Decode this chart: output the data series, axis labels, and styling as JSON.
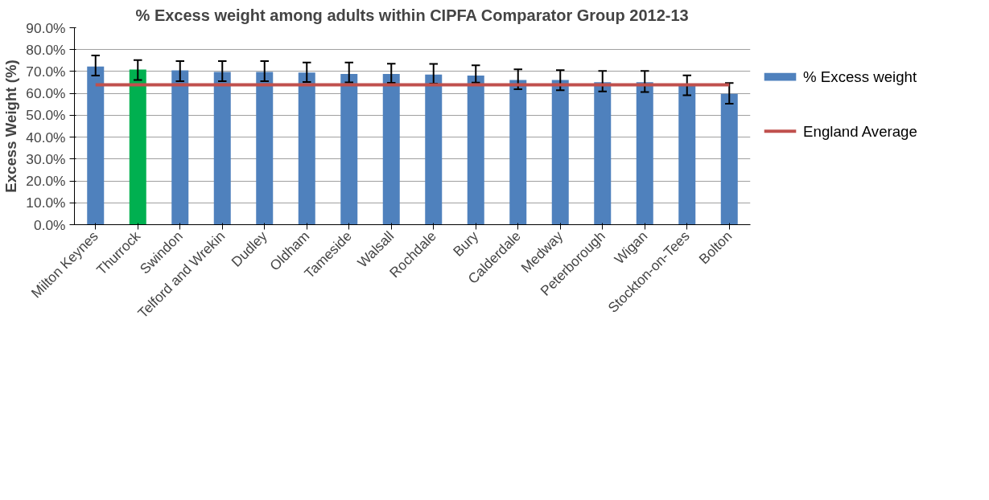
{
  "chart_data": {
    "type": "bar",
    "title": "% Excess weight among adults within CIPFA Comparator Group 2012-13",
    "ylabel": "Excess Weight (%)",
    "categories": [
      "Milton Keynes",
      "Thurrock",
      "Swindon",
      "Telford and Wrekin",
      "Dudley",
      "Oldham",
      "Tameside",
      "Walsall",
      "Rochdale",
      "Bury",
      "Calderdale",
      "Medway",
      "Peterborough",
      "Wigan",
      "Stockton-on-Tees",
      "Bolton"
    ],
    "series": [
      {
        "name": "% Excess weight",
        "color": "#4f81bd",
        "colors": [
          "#4f81bd",
          "#00b050",
          "#4f81bd",
          "#4f81bd",
          "#4f81bd",
          "#4f81bd",
          "#4f81bd",
          "#4f81bd",
          "#4f81bd",
          "#4f81bd",
          "#4f81bd",
          "#4f81bd",
          "#4f81bd",
          "#4f81bd",
          "#4f81bd",
          "#4f81bd"
        ],
        "values": [
          72.3,
          70.9,
          70.5,
          69.8,
          69.8,
          69.5,
          68.9,
          68.9,
          68.6,
          68.1,
          66.1,
          66.1,
          65.1,
          65.1,
          64.0,
          59.8
        ],
        "errors": [
          [
            68.1,
            77.3
          ],
          [
            66.1,
            75.2
          ],
          [
            65.6,
            74.8
          ],
          [
            65.6,
            74.8
          ],
          [
            65.6,
            74.8
          ],
          [
            65.2,
            74.1
          ],
          [
            65.0,
            74.1
          ],
          [
            64.8,
            73.6
          ],
          [
            64.5,
            73.5
          ],
          [
            64.9,
            72.8
          ],
          [
            61.9,
            71.0
          ],
          [
            61.4,
            70.6
          ],
          [
            60.9,
            70.3
          ],
          [
            60.6,
            70.3
          ],
          [
            59.1,
            68.2
          ],
          [
            55.3,
            64.7
          ]
        ]
      }
    ],
    "ref_lines": [
      {
        "axis": "y",
        "value": 63.9,
        "label": "England Average",
        "color": "#c0504d"
      }
    ],
    "ylim": [
      0,
      90
    ],
    "yticks": [
      {
        "value": 0,
        "label": "0.0%"
      },
      {
        "value": 10,
        "label": "10.0%"
      },
      {
        "value": 20,
        "label": "20.0%"
      },
      {
        "value": 30,
        "label": "30.0%"
      },
      {
        "value": 40,
        "label": "40.0%"
      },
      {
        "value": 50,
        "label": "50.0%"
      },
      {
        "value": 60,
        "label": "60.0%"
      },
      {
        "value": 70,
        "label": "70.0%"
      },
      {
        "value": 80,
        "label": "80.0%"
      },
      {
        "value": 90,
        "label": "90.0%"
      }
    ],
    "grid": "y",
    "legend": "right"
  }
}
